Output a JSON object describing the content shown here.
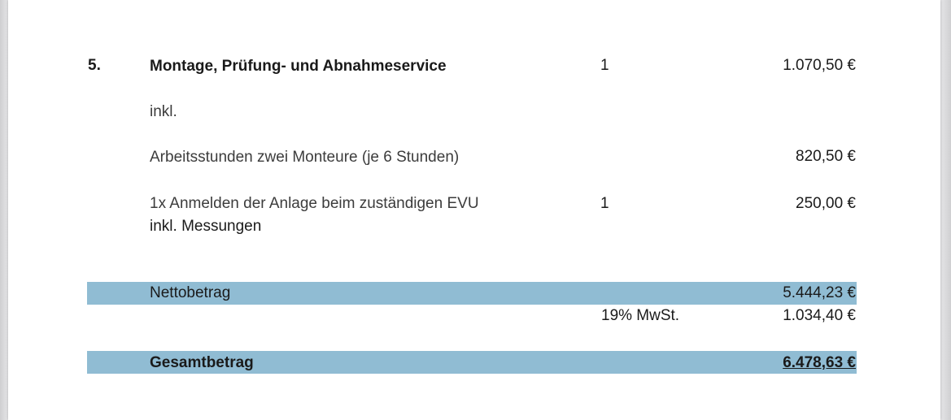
{
  "item": {
    "number": "5.",
    "title": "Montage, Prüfung- und Abnahmeservice",
    "quantity": "1",
    "price": "1.070,50 €",
    "incl_label": "inkl.",
    "sub_items": [
      {
        "description": "Arbeitsstunden zwei Monteure (je 6 Stunden)",
        "quantity": "",
        "price": "820,50 €"
      },
      {
        "description": "1x Anmelden der Anlage beim zuständigen EVU",
        "description_line2": "inkl. Messungen",
        "quantity": "1",
        "price": "250,00 €"
      }
    ]
  },
  "totals": {
    "net_label": "Nettobetrag",
    "net_value": "5.444,23 €",
    "vat_label": "19% MwSt.",
    "vat_value": "1.034,40 €",
    "gross_label": "Gesamtbetrag",
    "gross_value": "6.478,63 €"
  },
  "colors": {
    "band": "#90bcd3"
  }
}
